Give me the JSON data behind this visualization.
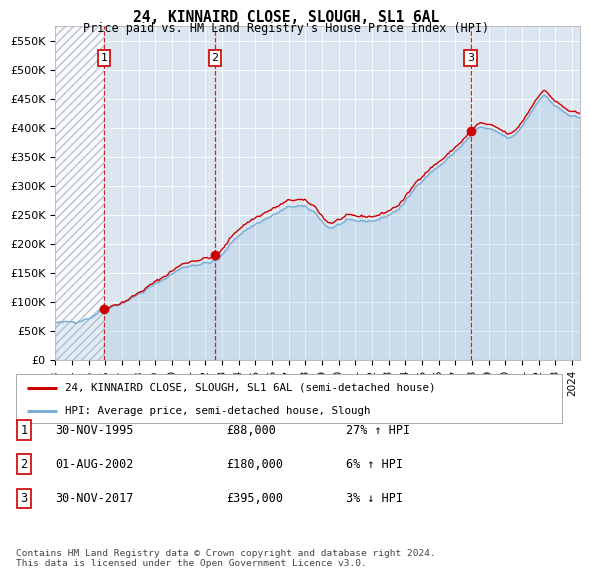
{
  "title": "24, KINNAIRD CLOSE, SLOUGH, SL1 6AL",
  "subtitle": "Price paid vs. HM Land Registry's House Price Index (HPI)",
  "ylabel_ticks": [
    0,
    50000,
    100000,
    150000,
    200000,
    250000,
    300000,
    350000,
    400000,
    450000,
    500000,
    550000
  ],
  "ylabel_labels": [
    "£0",
    "£50K",
    "£100K",
    "£150K",
    "£200K",
    "£250K",
    "£300K",
    "£350K",
    "£400K",
    "£450K",
    "£500K",
    "£550K"
  ],
  "ylim": [
    0,
    575000
  ],
  "xlim_start": 1993.0,
  "xlim_end": 2024.5,
  "sale_years": [
    1995.917,
    2002.583,
    2017.917
  ],
  "sale_prices": [
    88000,
    180000,
    395000
  ],
  "sale_labels": [
    "1",
    "2",
    "3"
  ],
  "sale_dates": [
    "30-NOV-1995",
    "01-AUG-2002",
    "30-NOV-2017"
  ],
  "sale_amounts": [
    "£88,000",
    "£180,000",
    "£395,000"
  ],
  "sale_hpi": [
    "27% ↑ HPI",
    "6% ↑ HPI",
    "3% ↓ HPI"
  ],
  "red_line_color": "#cc0000",
  "blue_line_color": "#7aadd4",
  "dashed_line_color": "#cc0000",
  "bg_color": "#dce6f1",
  "plot_bg": "#ffffff",
  "hatch_color": "#b0b8c8",
  "legend_line1": "24, KINNAIRD CLOSE, SLOUGH, SL1 6AL (semi-detached house)",
  "legend_line2": "HPI: Average price, semi-detached house, Slough",
  "footnote": "Contains HM Land Registry data © Crown copyright and database right 2024.\nThis data is licensed under the Open Government Licence v3.0.",
  "xtick_years": [
    1993,
    1994,
    1995,
    1996,
    1997,
    1998,
    1999,
    2000,
    2001,
    2002,
    2003,
    2004,
    2005,
    2006,
    2007,
    2008,
    2009,
    2010,
    2011,
    2012,
    2013,
    2014,
    2015,
    2016,
    2017,
    2018,
    2019,
    2020,
    2021,
    2022,
    2023,
    2024
  ]
}
